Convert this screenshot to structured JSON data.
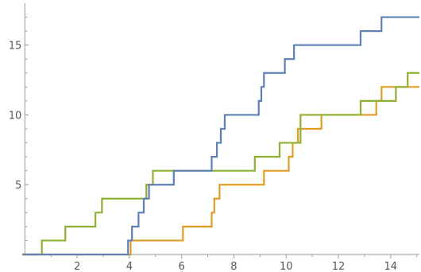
{
  "chart_data": {
    "type": "line",
    "step": true,
    "xlim": [
      -0.1,
      15.1
    ],
    "ylim": [
      0,
      18
    ],
    "x_ticks": [
      2,
      4,
      6,
      8,
      10,
      12,
      14
    ],
    "x_tick_labels": [
      "2",
      "4",
      "6",
      "8",
      "10",
      "12",
      "14"
    ],
    "y_ticks": [
      5,
      10,
      15
    ],
    "y_tick_labels": [
      "5",
      "10",
      "15"
    ],
    "grid": false,
    "legend": "none",
    "series": [
      {
        "color": "#5e81b5",
        "points": [
          [
            -0.1,
            0
          ],
          [
            3.95,
            0
          ],
          [
            3.95,
            1
          ],
          [
            4.1,
            1
          ],
          [
            4.1,
            2
          ],
          [
            4.35,
            2
          ],
          [
            4.35,
            3
          ],
          [
            4.55,
            3
          ],
          [
            4.55,
            4
          ],
          [
            4.75,
            4
          ],
          [
            4.75,
            5
          ],
          [
            5.7,
            5
          ],
          [
            5.7,
            6
          ],
          [
            7.15,
            6
          ],
          [
            7.15,
            7
          ],
          [
            7.35,
            7
          ],
          [
            7.35,
            8
          ],
          [
            7.5,
            8
          ],
          [
            7.5,
            9
          ],
          [
            7.65,
            9
          ],
          [
            7.65,
            10
          ],
          [
            8.95,
            10
          ],
          [
            8.95,
            11
          ],
          [
            9.05,
            11
          ],
          [
            9.05,
            12
          ],
          [
            9.15,
            12
          ],
          [
            9.15,
            13
          ],
          [
            9.95,
            13
          ],
          [
            9.95,
            14
          ],
          [
            10.3,
            14
          ],
          [
            10.3,
            15
          ],
          [
            12.85,
            15
          ],
          [
            12.85,
            16
          ],
          [
            13.65,
            16
          ],
          [
            13.65,
            17
          ],
          [
            15.1,
            17
          ]
        ]
      },
      {
        "color": "#e19c24",
        "points": [
          [
            -0.1,
            0
          ],
          [
            4.05,
            0
          ],
          [
            4.05,
            1
          ],
          [
            6.05,
            1
          ],
          [
            6.05,
            2
          ],
          [
            7.15,
            2
          ],
          [
            7.15,
            3
          ],
          [
            7.25,
            3
          ],
          [
            7.25,
            4
          ],
          [
            7.45,
            4
          ],
          [
            7.45,
            5
          ],
          [
            9.15,
            5
          ],
          [
            9.15,
            6
          ],
          [
            10.1,
            6
          ],
          [
            10.1,
            7
          ],
          [
            10.25,
            7
          ],
          [
            10.25,
            8
          ],
          [
            10.45,
            8
          ],
          [
            10.45,
            9
          ],
          [
            11.35,
            9
          ],
          [
            11.35,
            10
          ],
          [
            13.45,
            10
          ],
          [
            13.45,
            11
          ],
          [
            13.65,
            11
          ],
          [
            13.65,
            12
          ],
          [
            15.1,
            12
          ]
        ]
      },
      {
        "color": "#8fb032",
        "points": [
          [
            -0.1,
            0
          ],
          [
            0.65,
            0
          ],
          [
            0.65,
            1
          ],
          [
            1.55,
            1
          ],
          [
            1.55,
            2
          ],
          [
            2.7,
            2
          ],
          [
            2.7,
            3
          ],
          [
            2.95,
            3
          ],
          [
            2.95,
            4
          ],
          [
            4.65,
            4
          ],
          [
            4.65,
            5
          ],
          [
            4.9,
            5
          ],
          [
            4.9,
            6
          ],
          [
            8.8,
            6
          ],
          [
            8.8,
            7
          ],
          [
            9.75,
            7
          ],
          [
            9.75,
            8
          ],
          [
            10.55,
            8
          ],
          [
            10.55,
            10
          ],
          [
            12.85,
            10
          ],
          [
            12.85,
            11
          ],
          [
            14.2,
            11
          ],
          [
            14.2,
            12
          ],
          [
            14.65,
            12
          ],
          [
            14.65,
            13
          ],
          [
            15.1,
            13
          ]
        ]
      }
    ]
  }
}
